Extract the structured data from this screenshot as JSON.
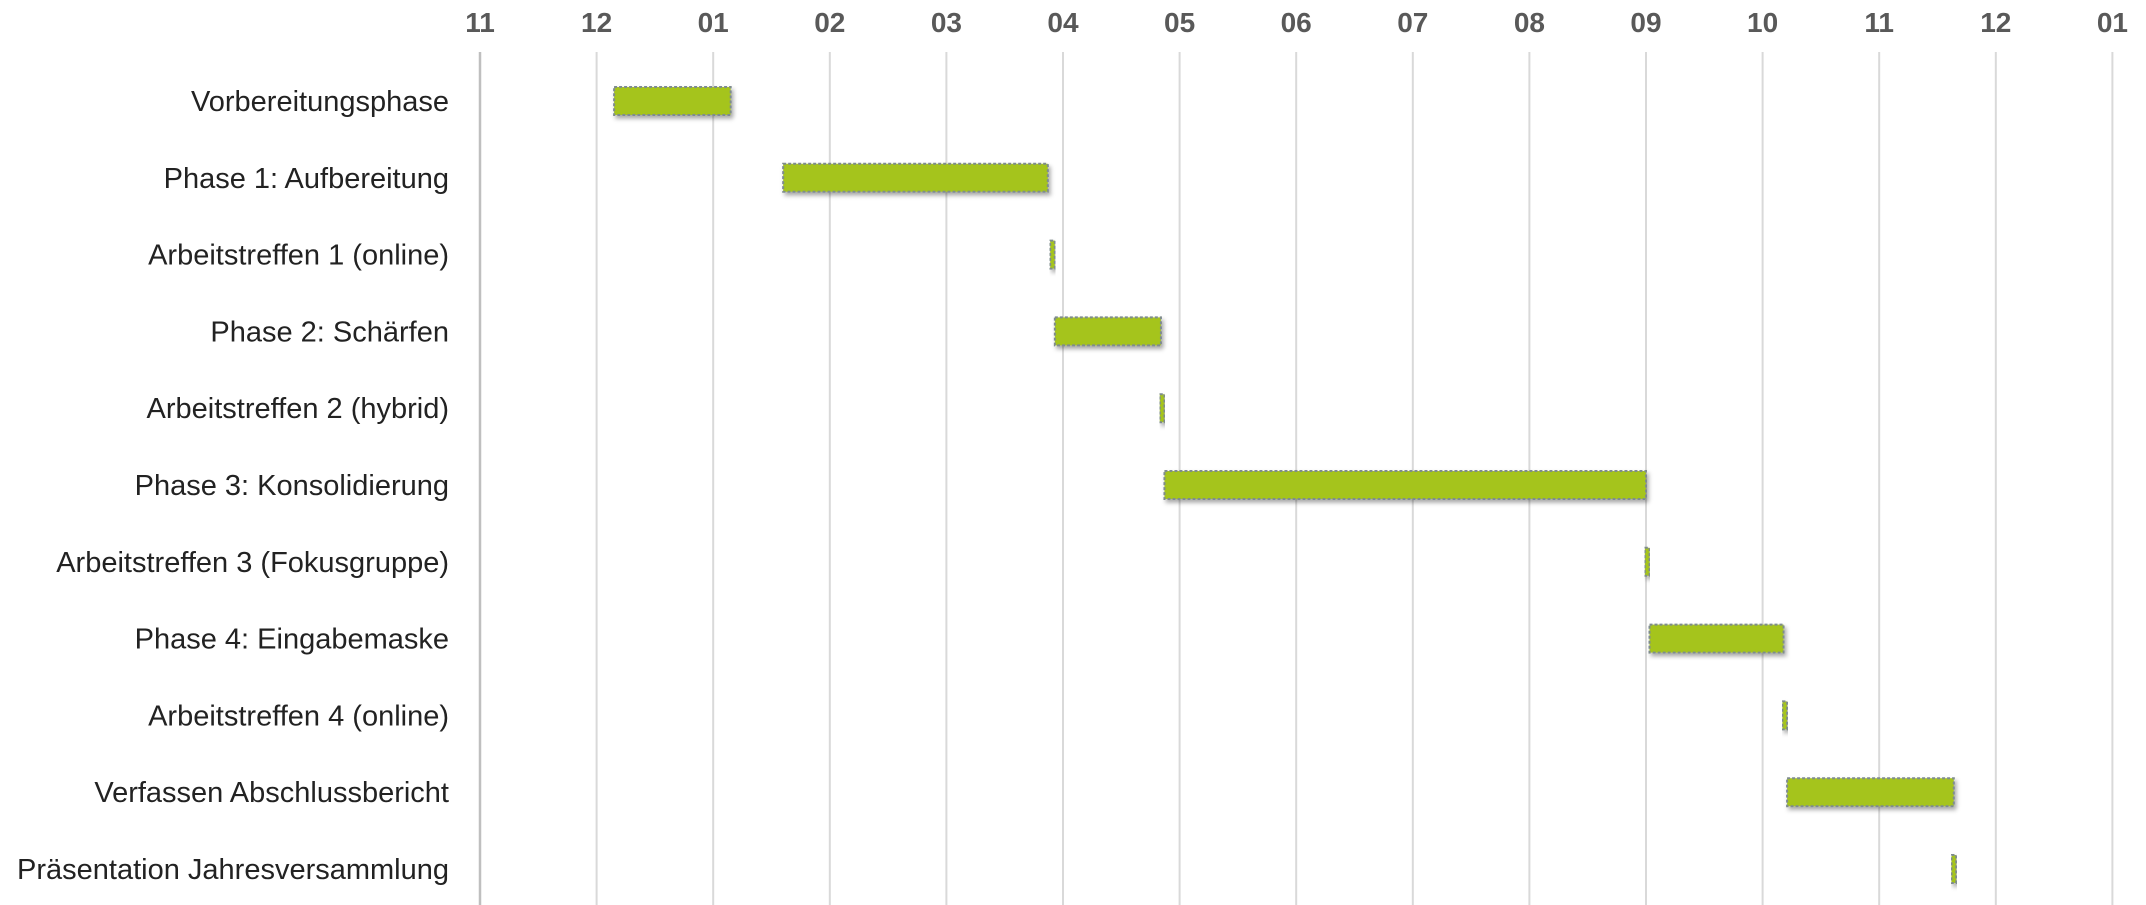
{
  "chart_data": {
    "type": "bar",
    "orientation": "horizontal-gantt",
    "title": "",
    "xlabel": "",
    "ylabel": "",
    "x_axis_position": "top",
    "grid": true,
    "legend": "none",
    "x_ticks": [
      "11",
      "12",
      "01",
      "02",
      "03",
      "04",
      "05",
      "06",
      "07",
      "08",
      "09",
      "10",
      "11",
      "12",
      "01"
    ],
    "xlim": [
      0,
      14
    ],
    "tasks": [
      {
        "name": "Vorbereitungsphase",
        "start": 1.15,
        "end": 2.15
      },
      {
        "name": "Phase 1: Aufbereitung",
        "start": 2.6,
        "end": 4.87
      },
      {
        "name": "Arbeitstreffen 1 (online)",
        "start": 4.89,
        "end": 4.93
      },
      {
        "name": "Phase 2: Schärfen",
        "start": 4.93,
        "end": 5.84
      },
      {
        "name": "Arbeitstreffen 2 (hybrid)",
        "start": 5.83,
        "end": 5.87
      },
      {
        "name": "Phase 3: Konsolidierung",
        "start": 5.87,
        "end": 10.0
      },
      {
        "name": "Arbeitstreffen 3 (Fokusgruppe)",
        "start": 9.99,
        "end": 10.03
      },
      {
        "name": "Phase 4: Eingabemaske",
        "start": 10.03,
        "end": 11.18
      },
      {
        "name": "Arbeitstreffen 4 (online)",
        "start": 11.17,
        "end": 11.21
      },
      {
        "name": "Verfassen Abschlussbericht",
        "start": 11.21,
        "end": 12.64
      },
      {
        "name": "Präsentation Jahresversammlung",
        "start": 12.62,
        "end": 12.66
      }
    ],
    "colors": {
      "bar_fill": "#a5c41d",
      "bar_border": "#7f8c8d",
      "grid": "#d9d9d9",
      "tick_text": "#595959",
      "label_text": "#222222"
    }
  }
}
